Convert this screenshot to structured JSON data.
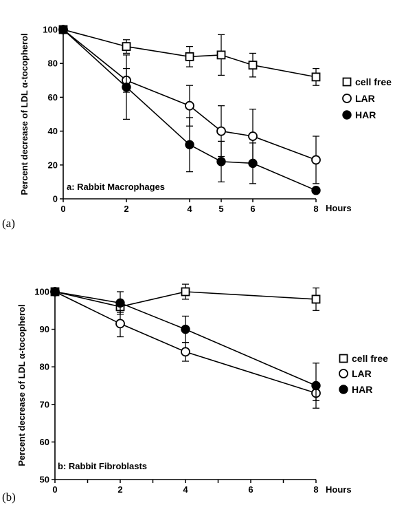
{
  "chart_data": [
    {
      "type": "line",
      "panel_label": "(a)",
      "annotation": "a: Rabbit Macrophages",
      "ylabel": "Percent decrease of LDL α-tocopherol",
      "xlabel": "Hours",
      "xlim": [
        0,
        8
      ],
      "ylim": [
        0,
        100
      ],
      "x_ticks": [
        0,
        2,
        4,
        5,
        6,
        8
      ],
      "x_tick_labels": [
        "0",
        "2",
        "4",
        "5",
        "6",
        "8"
      ],
      "y_ticks": [
        0,
        20,
        40,
        60,
        80,
        100
      ],
      "y_tick_labels": [
        "0",
        "20",
        "40",
        "60",
        "80",
        "100"
      ],
      "legend_position": "right",
      "series": [
        {
          "name": "cell free",
          "marker": "square-open",
          "x": [
            0,
            2,
            4,
            5,
            6,
            8
          ],
          "y": [
            100,
            90,
            84,
            85,
            79,
            72
          ],
          "err": [
            0,
            4,
            6,
            12,
            7,
            5
          ]
        },
        {
          "name": "LAR",
          "marker": "circle-open",
          "x": [
            0,
            2,
            4,
            5,
            6,
            8
          ],
          "y": [
            100,
            70,
            55,
            40,
            37,
            23
          ],
          "err": [
            0,
            7,
            12,
            15,
            16,
            14
          ]
        },
        {
          "name": "HAR",
          "marker": "circle-filled",
          "x": [
            0,
            2,
            4,
            5,
            6,
            8
          ],
          "y": [
            100,
            66,
            32,
            22,
            21,
            5
          ],
          "err": [
            0,
            19,
            16,
            12,
            12,
            0
          ]
        }
      ]
    },
    {
      "type": "line",
      "panel_label": "(b)",
      "annotation": "b: Rabbit Fibroblasts",
      "ylabel": "Percent decrease of LDL α-tocopherol",
      "xlabel": "Hours",
      "xlim": [
        0,
        8
      ],
      "ylim": [
        50,
        100
      ],
      "x_ticks": [
        0,
        1,
        2,
        3,
        4,
        5,
        6,
        7,
        8
      ],
      "x_tick_labels": [
        "0",
        "",
        "2",
        "",
        "4",
        "",
        "6",
        "",
        "8"
      ],
      "y_ticks": [
        50,
        60,
        70,
        80,
        90,
        100
      ],
      "y_tick_labels": [
        "50",
        "60",
        "70",
        "80",
        "90",
        "100"
      ],
      "legend_position": "right",
      "series": [
        {
          "name": "cell free",
          "marker": "square-open",
          "x": [
            0,
            2,
            4,
            8
          ],
          "y": [
            100,
            96,
            100,
            98
          ],
          "err": [
            0,
            1.5,
            2,
            3
          ]
        },
        {
          "name": "LAR",
          "marker": "circle-open",
          "x": [
            0,
            2,
            4,
            8
          ],
          "y": [
            100,
            91.5,
            84,
            73
          ],
          "err": [
            0,
            3.5,
            2.5,
            2
          ]
        },
        {
          "name": "HAR",
          "marker": "circle-filled",
          "x": [
            0,
            2,
            4,
            8
          ],
          "y": [
            100,
            97,
            90,
            75
          ],
          "err": [
            0,
            3,
            3.5,
            6
          ]
        }
      ]
    }
  ]
}
